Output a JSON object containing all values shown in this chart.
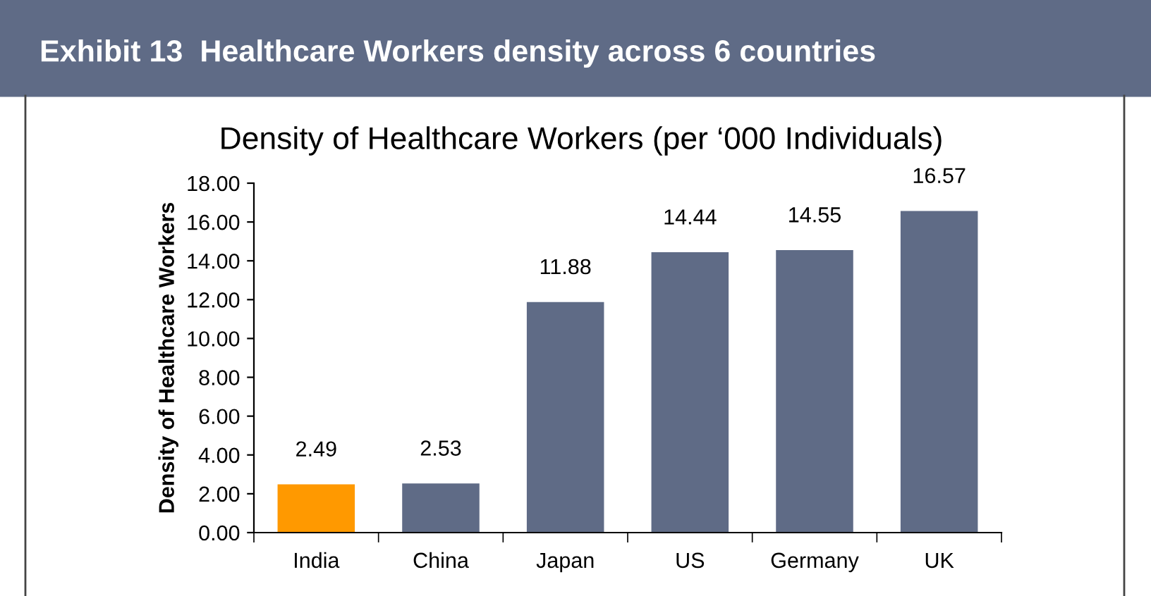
{
  "chart_data": {
    "type": "bar",
    "title": "Exhibit 13  Healthcare Workers density across 6 countries",
    "subtitle": "Density of Healthcare Workers (per ‘000 Individuals)",
    "ylabel": "Density of Healthcare Workers",
    "categories": [
      "India",
      "China",
      "Japan",
      "US",
      "Germany",
      "UK"
    ],
    "values": [
      2.49,
      2.53,
      11.88,
      14.44,
      14.55,
      16.57
    ],
    "colors": [
      "#ff9900",
      "#5f6b86",
      "#5f6b86",
      "#5f6b86",
      "#5f6b86",
      "#5f6b86"
    ],
    "ylim": [
      0,
      18
    ],
    "yticks": [
      {
        "value": 0,
        "label": "0.00"
      },
      {
        "value": 2,
        "label": "2.00"
      },
      {
        "value": 4,
        "label": "4.00"
      },
      {
        "value": 6,
        "label": "6.00"
      },
      {
        "value": 8,
        "label": "8.00"
      },
      {
        "value": 10,
        "label": "10.00"
      },
      {
        "value": 12,
        "label": "12.00"
      },
      {
        "value": 14,
        "label": "14.00"
      },
      {
        "value": 16,
        "label": "16.00"
      },
      {
        "value": 18,
        "label": "18.00"
      }
    ],
    "data_labels": true,
    "grid": false
  }
}
